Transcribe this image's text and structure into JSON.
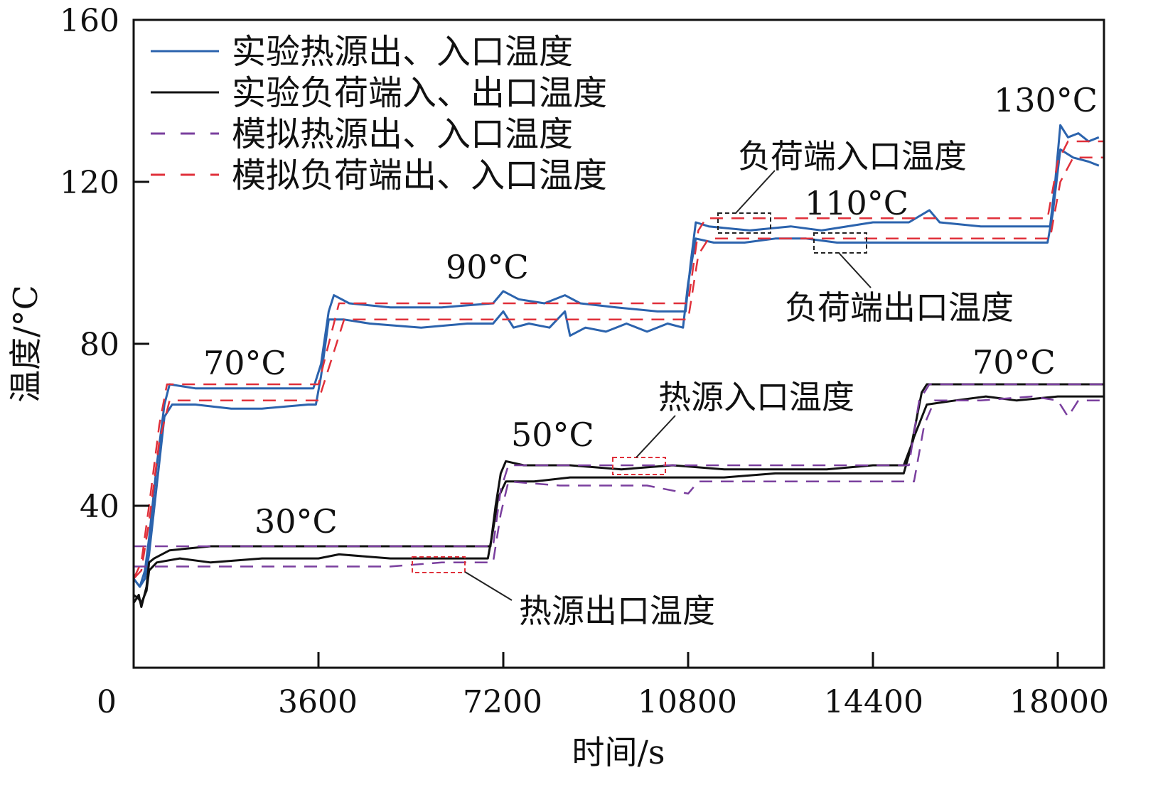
{
  "chart_data": {
    "type": "line",
    "xlabel": "时间/s",
    "ylabel": "温度/°C",
    "xlim": [
      0,
      18900
    ],
    "ylim": [
      0,
      160
    ],
    "xticks": [
      0,
      3600,
      7200,
      10800,
      14400,
      18000
    ],
    "yticks": [
      40,
      80,
      120,
      160
    ],
    "x_tick_labels": [
      "0",
      "3600",
      "7200",
      "10800",
      "14400",
      "18000"
    ],
    "y_tick_labels": [
      "40",
      "80",
      "120",
      "160"
    ],
    "grid": false,
    "legend_position": "top-left",
    "colors": {
      "blue": "#2b63ad",
      "black": "#111111",
      "purple": "#7a3f9e",
      "red": "#e0303a"
    },
    "legend": [
      {
        "label": "实验热源出、入口温度",
        "color": "#2b63ad",
        "style": "solid"
      },
      {
        "label": "实验负荷端入、出口温度",
        "color": "#111111",
        "style": "solid"
      },
      {
        "label": "模拟热源出、入口温度",
        "color": "#7a3f9e",
        "style": "dashed"
      },
      {
        "label": "模拟负荷端出、入口温度",
        "color": "#e0303a",
        "style": "dashed"
      }
    ],
    "series": [
      {
        "name": "实验热源出、入口温度",
        "color": "#2b63ad",
        "style": "solid",
        "points": [
          [
            0,
            22
          ],
          [
            120,
            20
          ],
          [
            220,
            24
          ],
          [
            300,
            32
          ],
          [
            450,
            50
          ],
          [
            600,
            65
          ],
          [
            700,
            70
          ],
          [
            1200,
            69
          ],
          [
            2400,
            69
          ],
          [
            3500,
            69
          ],
          [
            3650,
            75
          ],
          [
            3800,
            88
          ],
          [
            3900,
            92
          ],
          [
            4200,
            90
          ],
          [
            5000,
            89
          ],
          [
            6000,
            89
          ],
          [
            7000,
            90
          ],
          [
            7200,
            93
          ],
          [
            7500,
            91
          ],
          [
            8000,
            90
          ],
          [
            8400,
            92
          ],
          [
            8700,
            90
          ],
          [
            9400,
            89
          ],
          [
            10200,
            88
          ],
          [
            10750,
            88
          ],
          [
            10850,
            100
          ],
          [
            10950,
            110
          ],
          [
            11200,
            109
          ],
          [
            12000,
            108
          ],
          [
            12800,
            109
          ],
          [
            13400,
            108
          ],
          [
            14400,
            110
          ],
          [
            15100,
            110
          ],
          [
            15500,
            113
          ],
          [
            15700,
            110
          ],
          [
            16500,
            109
          ],
          [
            17300,
            109
          ],
          [
            17850,
            109
          ],
          [
            17950,
            120
          ],
          [
            18050,
            134
          ],
          [
            18200,
            131
          ],
          [
            18400,
            132
          ],
          [
            18600,
            130
          ],
          [
            18800,
            131
          ]
        ]
      },
      {
        "name": "实验热源出、入口温度",
        "color": "#2b63ad",
        "style": "solid",
        "points": [
          [
            0,
            22
          ],
          [
            120,
            20
          ],
          [
            220,
            22
          ],
          [
            300,
            28
          ],
          [
            450,
            45
          ],
          [
            600,
            62
          ],
          [
            750,
            65
          ],
          [
            1200,
            65
          ],
          [
            1900,
            64
          ],
          [
            2500,
            64
          ],
          [
            3400,
            65
          ],
          [
            3550,
            65
          ],
          [
            3650,
            72
          ],
          [
            3800,
            86
          ],
          [
            4100,
            86
          ],
          [
            4600,
            85
          ],
          [
            5600,
            84
          ],
          [
            6500,
            85
          ],
          [
            7000,
            85
          ],
          [
            7200,
            88
          ],
          [
            7400,
            84
          ],
          [
            7700,
            85
          ],
          [
            8100,
            84
          ],
          [
            8400,
            88
          ],
          [
            8500,
            82
          ],
          [
            8800,
            84
          ],
          [
            9200,
            83
          ],
          [
            9600,
            85
          ],
          [
            10000,
            83
          ],
          [
            10400,
            85
          ],
          [
            10700,
            84
          ],
          [
            10800,
            95
          ],
          [
            10950,
            106
          ],
          [
            11300,
            105
          ],
          [
            11900,
            105
          ],
          [
            12500,
            106
          ],
          [
            13100,
            106
          ],
          [
            13700,
            105
          ],
          [
            14400,
            105
          ],
          [
            15200,
            105
          ],
          [
            16000,
            105
          ],
          [
            17000,
            105
          ],
          [
            17800,
            105
          ],
          [
            17900,
            112
          ],
          [
            18050,
            128
          ],
          [
            18300,
            126
          ],
          [
            18600,
            125
          ],
          [
            18800,
            124
          ]
        ]
      },
      {
        "name": "实验负荷端入、出口温度",
        "color": "#111111",
        "style": "solid",
        "points": [
          [
            0,
            16
          ],
          [
            100,
            18
          ],
          [
            150,
            15
          ],
          [
            250,
            20
          ],
          [
            300,
            26
          ],
          [
            400,
            27
          ],
          [
            700,
            29
          ],
          [
            1500,
            30
          ],
          [
            3000,
            30
          ],
          [
            5000,
            30
          ],
          [
            6000,
            30
          ],
          [
            6950,
            30
          ],
          [
            7050,
            40
          ],
          [
            7150,
            48
          ],
          [
            7250,
            51
          ],
          [
            7600,
            50
          ],
          [
            8500,
            50
          ],
          [
            9500,
            49
          ],
          [
            10500,
            50
          ],
          [
            11500,
            49
          ],
          [
            12500,
            49
          ],
          [
            13500,
            49
          ],
          [
            14400,
            50
          ],
          [
            15000,
            50
          ],
          [
            15150,
            55
          ],
          [
            15350,
            68
          ],
          [
            15450,
            70
          ],
          [
            16000,
            70
          ],
          [
            17000,
            70
          ],
          [
            18000,
            70
          ],
          [
            18900,
            70
          ]
        ]
      },
      {
        "name": "实验负荷端入、出口温度",
        "color": "#111111",
        "style": "solid",
        "points": [
          [
            0,
            18
          ],
          [
            100,
            17
          ],
          [
            150,
            16
          ],
          [
            250,
            19
          ],
          [
            300,
            24
          ],
          [
            450,
            26
          ],
          [
            900,
            27
          ],
          [
            1500,
            26
          ],
          [
            2500,
            27
          ],
          [
            3600,
            27
          ],
          [
            4000,
            28
          ],
          [
            5000,
            27
          ],
          [
            6000,
            27
          ],
          [
            6900,
            27
          ],
          [
            7000,
            34
          ],
          [
            7100,
            42
          ],
          [
            7250,
            46
          ],
          [
            7800,
            46
          ],
          [
            8500,
            47
          ],
          [
            9500,
            47
          ],
          [
            10500,
            47
          ],
          [
            11500,
            47
          ],
          [
            12500,
            48
          ],
          [
            13500,
            48
          ],
          [
            14400,
            48
          ],
          [
            15000,
            48
          ],
          [
            15200,
            57
          ],
          [
            15450,
            65
          ],
          [
            16000,
            66
          ],
          [
            16600,
            67
          ],
          [
            17200,
            66
          ],
          [
            18000,
            67
          ],
          [
            18900,
            67
          ]
        ]
      },
      {
        "name": "模拟热源出、入口温度",
        "color": "#7a3f9e",
        "style": "dashed",
        "points": [
          [
            0,
            30
          ],
          [
            400,
            30
          ],
          [
            1500,
            30
          ],
          [
            3600,
            30
          ],
          [
            6000,
            30
          ],
          [
            7000,
            30
          ],
          [
            7150,
            44
          ],
          [
            7300,
            50
          ],
          [
            8500,
            50
          ],
          [
            10800,
            50
          ],
          [
            12500,
            50
          ],
          [
            14400,
            50
          ],
          [
            15100,
            50
          ],
          [
            15300,
            66
          ],
          [
            15500,
            70
          ],
          [
            16500,
            70
          ],
          [
            18000,
            70
          ],
          [
            18900,
            70
          ]
        ]
      },
      {
        "name": "模拟热源出、入口温度",
        "color": "#7a3f9e",
        "style": "dashed",
        "points": [
          [
            0,
            25
          ],
          [
            400,
            25
          ],
          [
            1200,
            25
          ],
          [
            2500,
            25
          ],
          [
            3600,
            25
          ],
          [
            4300,
            25
          ],
          [
            5000,
            25
          ],
          [
            6000,
            26
          ],
          [
            7000,
            26
          ],
          [
            7150,
            38
          ],
          [
            7300,
            46
          ],
          [
            8300,
            45
          ],
          [
            9200,
            45
          ],
          [
            10000,
            45
          ],
          [
            10800,
            43
          ],
          [
            11000,
            46
          ],
          [
            12500,
            46
          ],
          [
            13500,
            46
          ],
          [
            14400,
            46
          ],
          [
            15200,
            46
          ],
          [
            15400,
            60
          ],
          [
            15600,
            66
          ],
          [
            16500,
            66
          ],
          [
            17500,
            67
          ],
          [
            18000,
            66
          ],
          [
            18200,
            62
          ],
          [
            18400,
            66
          ],
          [
            18900,
            66
          ]
        ]
      },
      {
        "name": "模拟负荷端出、入口温度",
        "color": "#e0303a",
        "style": "dashed",
        "points": [
          [
            0,
            22
          ],
          [
            150,
            26
          ],
          [
            300,
            40
          ],
          [
            500,
            60
          ],
          [
            650,
            70
          ],
          [
            1500,
            70
          ],
          [
            3600,
            70
          ],
          [
            3800,
            80
          ],
          [
            4000,
            90
          ],
          [
            5000,
            90
          ],
          [
            6000,
            90
          ],
          [
            7200,
            90
          ],
          [
            8500,
            90
          ],
          [
            10000,
            90
          ],
          [
            10800,
            90
          ],
          [
            11000,
            108
          ],
          [
            11150,
            111
          ],
          [
            12500,
            111
          ],
          [
            14400,
            111
          ],
          [
            16500,
            111
          ],
          [
            17800,
            111
          ],
          [
            18000,
            125
          ],
          [
            18200,
            130
          ],
          [
            18900,
            130
          ]
        ]
      },
      {
        "name": "模拟负荷端出、入口温度",
        "color": "#e0303a",
        "style": "dashed",
        "points": [
          [
            0,
            22
          ],
          [
            150,
            24
          ],
          [
            300,
            36
          ],
          [
            500,
            56
          ],
          [
            700,
            66
          ],
          [
            1500,
            66
          ],
          [
            3600,
            66
          ],
          [
            3900,
            78
          ],
          [
            4100,
            86
          ],
          [
            5000,
            86
          ],
          [
            6000,
            86
          ],
          [
            7200,
            86
          ],
          [
            8500,
            86
          ],
          [
            10000,
            86
          ],
          [
            10800,
            86
          ],
          [
            11000,
            102
          ],
          [
            11200,
            106
          ],
          [
            12500,
            106
          ],
          [
            14400,
            106
          ],
          [
            16500,
            106
          ],
          [
            17850,
            106
          ],
          [
            18050,
            120
          ],
          [
            18300,
            126
          ],
          [
            18900,
            126
          ]
        ]
      }
    ],
    "annotations": [
      {
        "text": "70°C"
      },
      {
        "text": "90°C"
      },
      {
        "text": "110°C"
      },
      {
        "text": "130°C"
      },
      {
        "text": "30°C"
      },
      {
        "text": "50°C"
      },
      {
        "text": "70°C"
      },
      {
        "text": "负荷端入口温度"
      },
      {
        "text": "负荷端出口温度"
      },
      {
        "text": "热源入口温度"
      },
      {
        "text": "热源出口温度"
      }
    ]
  }
}
